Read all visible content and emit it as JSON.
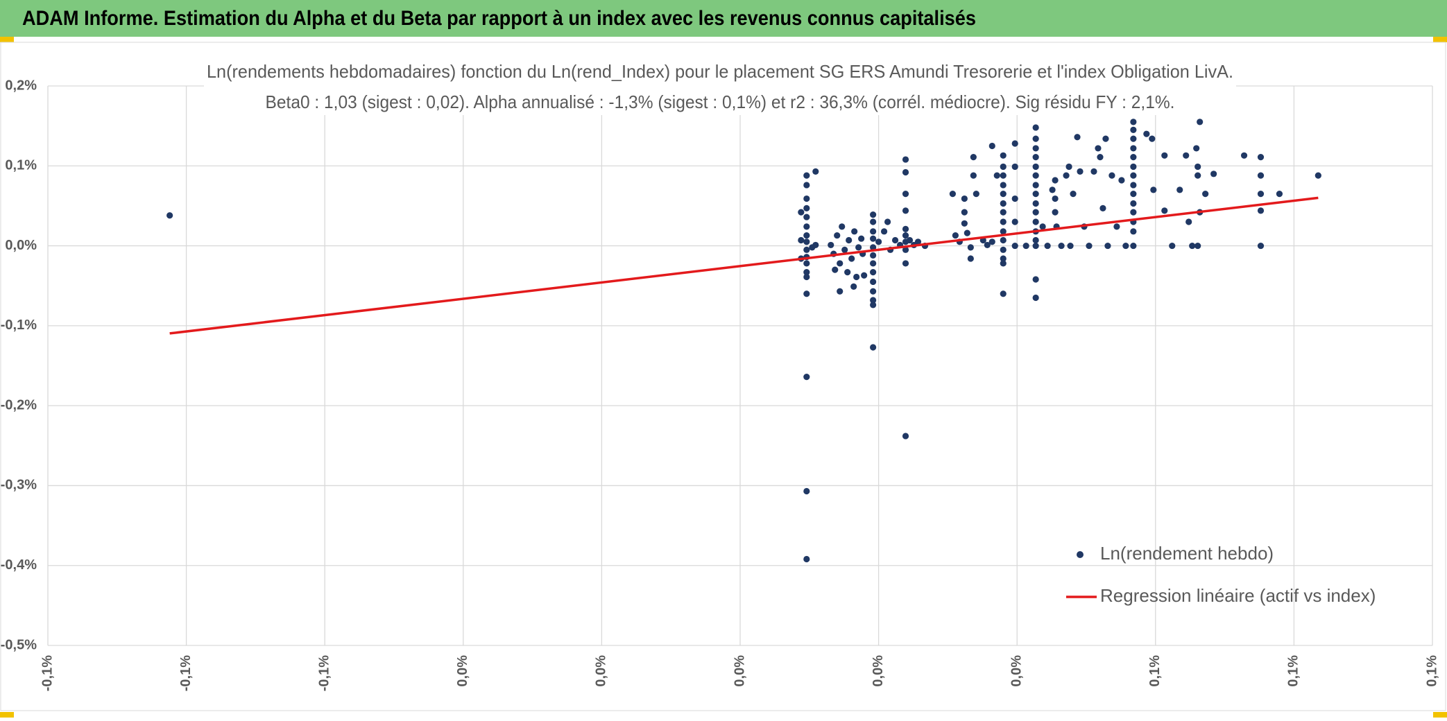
{
  "page_title": "ADAM Informe. Estimation du Alpha et du Beta par rapport à un index avec les revenus connus capitalisés",
  "chart_data": {
    "type": "scatter",
    "title": "Ln(rendements hebdomadaires) fonction du Ln(rend_Index) pour le placement SG ERS Amundi Tresorerie  et l'index Obligation LivA.",
    "subtitle": "Beta0 : 1,03 (sigest : 0,02). Alpha annualisé : -1,3% (sigest : 0,1%) et r2 : 36,3% (corrél. médiocre). Sig résidu FY : 2,1%.",
    "xlim": [
      -0.1,
      0.1
    ],
    "xticks": [
      {
        "value": -0.1,
        "label": "-0,1%"
      },
      {
        "value": -0.08,
        "label": "-0,1%"
      },
      {
        "value": -0.06,
        "label": "-0,1%"
      },
      {
        "value": -0.04,
        "label": "0,0%"
      },
      {
        "value": -0.02,
        "label": "0,0%"
      },
      {
        "value": 0,
        "label": "0,0%"
      },
      {
        "value": 0.02,
        "label": "0,0%"
      },
      {
        "value": 0.04,
        "label": "0,0%"
      },
      {
        "value": 0.06,
        "label": "0,1%"
      },
      {
        "value": 0.08,
        "label": "0,1%"
      },
      {
        "value": 0.1,
        "label": "0,1%"
      }
    ],
    "ylim": [
      -0.5,
      0.2
    ],
    "yticks": [
      {
        "value": 0.2,
        "label": "0,2%"
      },
      {
        "value": 0.1,
        "label": "0,1%"
      },
      {
        "value": 0,
        "label": "0,0%"
      },
      {
        "value": -0.1,
        "label": "-0,1%"
      },
      {
        "value": -0.2,
        "label": "-0,2%"
      },
      {
        "value": -0.3,
        "label": "-0,3%"
      },
      {
        "value": -0.4,
        "label": "-0,4%"
      },
      {
        "value": -0.5,
        "label": "-0,5%"
      }
    ],
    "grid": true,
    "legend": "bottom-right",
    "series": [
      {
        "name": "Ln(rendement hebdo)",
        "color": "#203864",
        "x": [
          -0.0824,
          0.0096,
          0.0096,
          0.0096,
          0.0096,
          0.0096,
          0.0096,
          0.0096,
          0.0096,
          0.0096,
          0.0096,
          0.0096,
          0.0096,
          0.0096,
          0.0096,
          0.0096,
          0.0096,
          0.0096,
          0.0088,
          0.0088,
          0.0088,
          0.0109,
          0.0109,
          0.0104,
          0.0131,
          0.0135,
          0.014,
          0.0144,
          0.0147,
          0.0151,
          0.0155,
          0.0157,
          0.0161,
          0.0165,
          0.0168,
          0.0171,
          0.0175,
          0.0177,
          0.0137,
          0.0144,
          0.0164,
          0.0179,
          0.0192,
          0.0192,
          0.0192,
          0.0192,
          0.0192,
          0.0192,
          0.0192,
          0.0192,
          0.0192,
          0.0192,
          0.0192,
          0.0192,
          0.0192,
          0.02,
          0.0208,
          0.0217,
          0.0213,
          0.0224,
          0.0231,
          0.0239,
          0.0239,
          0.0239,
          0.0239,
          0.0239,
          0.0239,
          0.0239,
          0.0239,
          0.0239,
          0.0239,
          0.0245,
          0.0251,
          0.0257,
          0.0267,
          0.0307,
          0.0311,
          0.0317,
          0.0324,
          0.0324,
          0.0324,
          0.0328,
          0.0333,
          0.0333,
          0.0337,
          0.0337,
          0.0341,
          0.0351,
          0.0357,
          0.0364,
          0.0371,
          0.0364,
          0.038,
          0.038,
          0.038,
          0.038,
          0.038,
          0.038,
          0.038,
          0.038,
          0.038,
          0.038,
          0.038,
          0.038,
          0.038,
          0.038,
          0.0397,
          0.0397,
          0.0397,
          0.0397,
          0.0397,
          0.0413,
          0.0427,
          0.0427,
          0.0427,
          0.0427,
          0.0427,
          0.0427,
          0.0427,
          0.0427,
          0.0427,
          0.0427,
          0.0427,
          0.0427,
          0.0427,
          0.0427,
          0.0427,
          0.0427,
          0.0437,
          0.0444,
          0.0451,
          0.0455,
          0.0455,
          0.0455,
          0.0457,
          0.0464,
          0.0471,
          0.0475,
          0.0477,
          0.0481,
          0.0487,
          0.0491,
          0.0497,
          0.0504,
          0.0511,
          0.0517,
          0.052,
          0.0524,
          0.0528,
          0.0531,
          0.0537,
          0.0544,
          0.0551,
          0.0557,
          0.0568,
          0.0568,
          0.0568,
          0.0568,
          0.0568,
          0.0568,
          0.0568,
          0.0568,
          0.0568,
          0.0568,
          0.0568,
          0.0568,
          0.0568,
          0.0568,
          0.0587,
          0.0595,
          0.0597,
          0.0613,
          0.0613,
          0.0624,
          0.0635,
          0.0644,
          0.0648,
          0.0653,
          0.0659,
          0.0661,
          0.0661,
          0.0661,
          0.0664,
          0.0664,
          0.0672,
          0.0684,
          0.0728,
          0.0752,
          0.0752,
          0.0752,
          0.0752,
          0.0752,
          0.0779,
          0.0835
        ],
        "values": [
          0.038,
          0.088,
          0.076,
          0.059,
          0.047,
          0.036,
          0.024,
          0.013,
          0.005,
          -0.005,
          -0.014,
          -0.022,
          -0.033,
          -0.039,
          -0.06,
          -0.164,
          -0.307,
          -0.392,
          0.042,
          0.007,
          -0.016,
          0.093,
          0.001,
          -0.002,
          0.001,
          -0.01,
          0.013,
          -0.022,
          0.024,
          -0.005,
          -0.033,
          0.007,
          -0.016,
          0.018,
          -0.039,
          -0.002,
          0.009,
          -0.01,
          -0.03,
          -0.057,
          -0.051,
          -0.037,
          0.039,
          0.03,
          0.018,
          0.009,
          -0.002,
          -0.012,
          -0.022,
          -0.033,
          -0.045,
          -0.057,
          -0.068,
          -0.074,
          -0.127,
          0.005,
          0.018,
          -0.005,
          0.03,
          0.007,
          0.001,
          0.108,
          0.092,
          0.065,
          0.044,
          0.021,
          0.013,
          0.005,
          -0.005,
          -0.022,
          -0.238,
          0.007,
          0.001,
          0.005,
          0,
          0.065,
          0.013,
          0.005,
          0.059,
          0.042,
          0.028,
          0.016,
          -0.002,
          -0.016,
          0.111,
          0.088,
          0.065,
          0.007,
          0.001,
          0.125,
          0.088,
          0.005,
          0.113,
          0.099,
          0.088,
          0.076,
          0.065,
          0.053,
          0.042,
          0.03,
          0.018,
          0.007,
          -0.005,
          -0.016,
          -0.022,
          -0.06,
          0.128,
          0.099,
          0.059,
          0.03,
          0,
          0,
          0.148,
          0.134,
          0.122,
          0.111,
          0.099,
          0.088,
          0.076,
          0.065,
          0.053,
          0.042,
          0.03,
          0.018,
          0.007,
          0,
          -0.042,
          -0.065,
          0.024,
          0,
          0.07,
          0.082,
          0.059,
          0.042,
          0.024,
          0,
          0.088,
          0.099,
          0,
          0.065,
          0.136,
          0.093,
          0.024,
          0,
          0.093,
          0.122,
          0.111,
          0.047,
          0.134,
          0,
          0.088,
          0.024,
          0.082,
          0,
          0.155,
          0.145,
          0.134,
          0.122,
          0.111,
          0.099,
          0.088,
          0.076,
          0.065,
          0.053,
          0.042,
          0.03,
          0.018,
          0,
          0.14,
          0.134,
          0.07,
          0.044,
          0.113,
          0,
          0.07,
          0.113,
          0.03,
          0,
          0.122,
          0.099,
          0.088,
          0,
          0.155,
          0.042,
          0.065,
          0.09,
          0.113,
          0.111,
          0.088,
          0.065,
          0.044,
          0,
          0.065,
          0.088
        ]
      },
      {
        "name": "Regression linéaire (actif vs index)",
        "color": "#e31a1c",
        "type": "line",
        "x": [
          -0.0824,
          0.0835
        ],
        "values": [
          -0.1096,
          0.06
        ]
      }
    ]
  }
}
